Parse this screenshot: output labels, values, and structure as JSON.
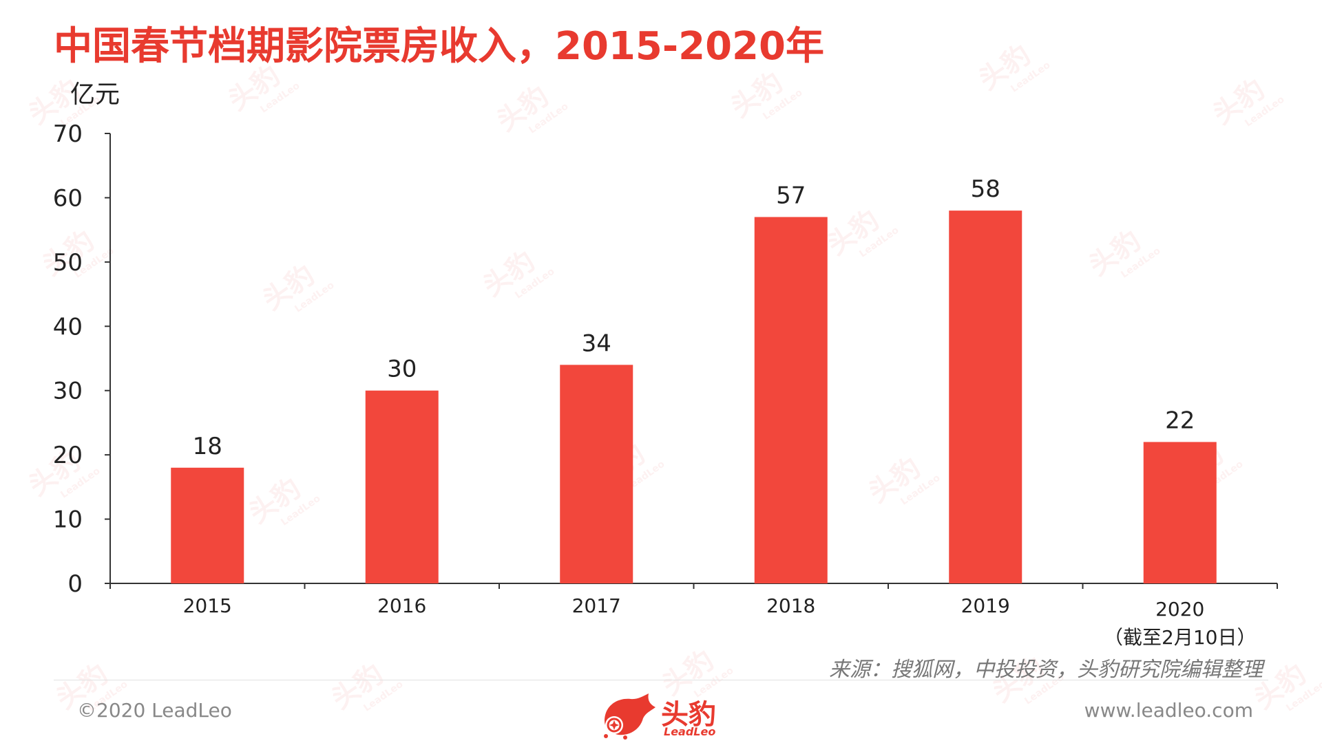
{
  "title": "中国春节档期影院票房收入，2015-2020年",
  "unit": "亿元",
  "note": "来源：搜狐网，中投投资，头豹研究院编辑整理",
  "footer": {
    "copyright": "©2020 LeadLeo",
    "website": "www.leadleo.com",
    "logo_cn": "头豹",
    "logo_en": "LeadLeo"
  },
  "watermark": {
    "cn": "头豹",
    "en": "LeadLeo"
  },
  "colors": {
    "bar": "#f2473c",
    "title": "#e83a2f",
    "axis": "#333333"
  },
  "chart_data": {
    "type": "bar",
    "categories": [
      "2015",
      "2016",
      "2017",
      "2018",
      "2019",
      "2020"
    ],
    "category_sublabels": [
      "",
      "",
      "",
      "",
      "",
      "（截至2月10日）"
    ],
    "values": [
      18,
      30,
      34,
      57,
      58,
      22
    ],
    "data_labels": [
      "18",
      "30",
      "34",
      "57",
      "58",
      "22"
    ],
    "title": "",
    "xlabel": "",
    "ylabel": "亿元",
    "ylim": [
      0,
      70
    ],
    "yticks": [
      0,
      10,
      20,
      30,
      40,
      50,
      60,
      70
    ],
    "grid": false,
    "legend": "none"
  }
}
